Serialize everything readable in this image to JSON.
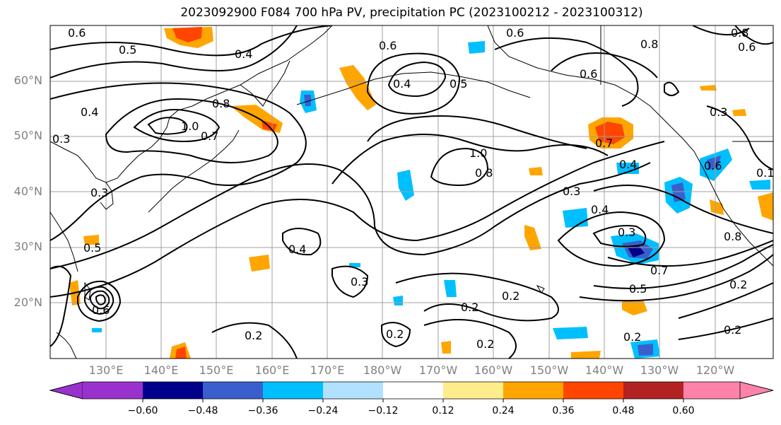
{
  "title": "2023092900 F084 700 hPa PV, precipitation PC (2023100212 - 2023100312)",
  "lat_labels": [
    "60°N",
    "50°N",
    "40°N",
    "30°N",
    "20°N"
  ],
  "lon_labels": [
    "130°E",
    "140°E",
    "150°E",
    "160°E",
    "170°E",
    "180°W",
    "170°W",
    "160°W",
    "150°W",
    "140°W",
    "130°W",
    "120°W"
  ],
  "colorbar": {
    "ticks": [
      "−0.60",
      "−0.48",
      "−0.36",
      "−0.24",
      "−0.12",
      "0.12",
      "0.24",
      "0.36",
      "0.48",
      "0.60"
    ],
    "colors": [
      "#9932cc",
      "#00008b",
      "#3a5fcd",
      "#00bfff",
      "#b0e2ff",
      "#ffffff",
      "#ffec8b",
      "#ffa500",
      "#ff4500",
      "#b22222",
      "#ff82ab"
    ]
  },
  "contour_labels": [
    "0.6",
    "0.5",
    "0.4",
    "0.6",
    "0.4",
    "0.5",
    "0.6",
    "0.8",
    "0.6",
    "0.8",
    "0.6",
    "0.8",
    "1.0",
    "0.7",
    "0.4",
    "0.3",
    "0.5",
    "0.4",
    "0.3",
    "1.0",
    "0.8",
    "0.7",
    "0.4",
    "0.3",
    "0.4",
    "0.3",
    "0.7",
    "0.5",
    "0.8",
    "0.6",
    "0.2",
    "0.3",
    "0.2",
    "0.2",
    "0.2",
    "0.2",
    "0.2",
    "0.2",
    "0.6",
    "0.2",
    "0.3",
    "0.1"
  ]
}
